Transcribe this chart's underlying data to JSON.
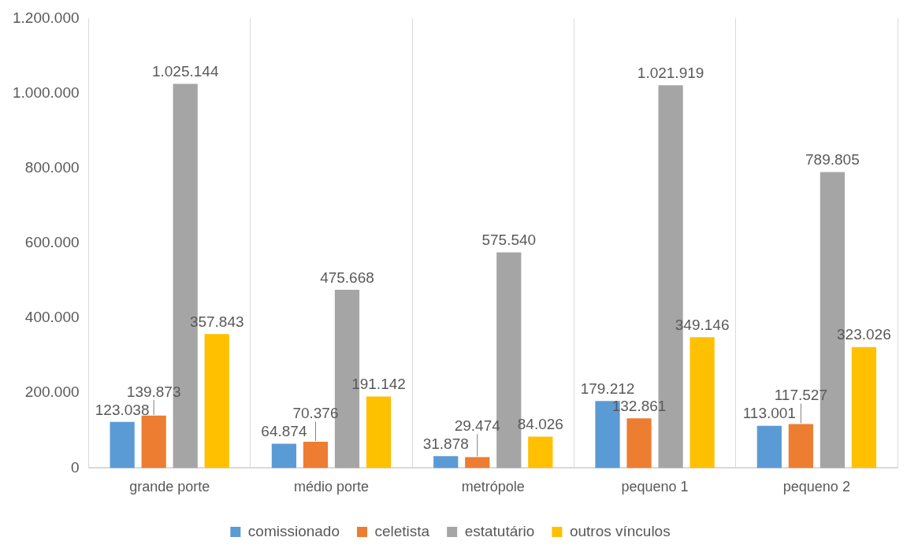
{
  "chart_data": {
    "type": "bar",
    "categories": [
      "grande porte",
      "médio porte",
      "metrópole",
      "pequeno 1",
      "pequeno 2"
    ],
    "series": [
      {
        "name": "comissionado",
        "color": "#5b9bd5",
        "values": [
          123038,
          64874,
          31878,
          179212,
          113001
        ],
        "value_labels": [
          "123.038",
          "64.874",
          "31.878",
          "179.212",
          "113.001"
        ]
      },
      {
        "name": "celetista",
        "color": "#ed7d31",
        "values": [
          139873,
          70376,
          29474,
          132861,
          117527
        ],
        "value_labels": [
          "139.873",
          "70.376",
          "29.474",
          "132.861",
          "117.527"
        ]
      },
      {
        "name": "estatutário",
        "color": "#a5a5a5",
        "values": [
          1025144,
          475668,
          575540,
          1021919,
          789805
        ],
        "value_labels": [
          "1.025.144",
          "475.668",
          "575.540",
          "1.021.919",
          "789.805"
        ]
      },
      {
        "name": "outros vínculos",
        "color": "#ffc000",
        "values": [
          357843,
          191142,
          84026,
          349146,
          323026
        ],
        "value_labels": [
          "357.843",
          "191.142",
          "84.026",
          "349.146",
          "323.026"
        ]
      }
    ],
    "ylim": [
      0,
      1200000
    ],
    "yticks": [
      0,
      {
        "value": 200000,
        "label": "200.000"
      },
      {
        "value": 400000,
        "label": "400.000"
      },
      {
        "value": 600000,
        "label": "600.000"
      },
      {
        "value": 800000,
        "label": "800.000"
      },
      {
        "value": 1000000,
        "label": "1.000.000"
      },
      {
        "value": 1200000,
        "label": "1.200.000"
      }
    ],
    "grid": "x",
    "legend": "bottom"
  }
}
